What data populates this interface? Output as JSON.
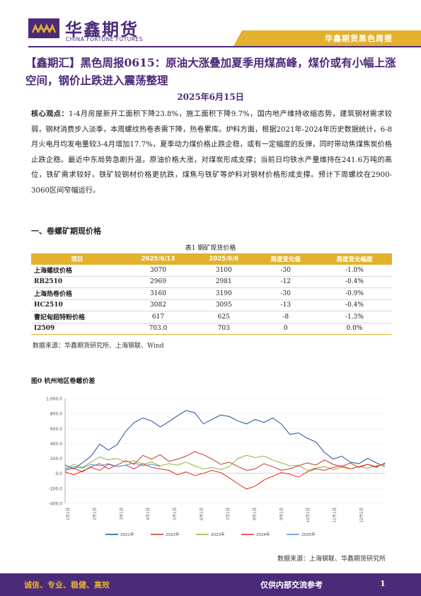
{
  "header": {
    "brand_cn": "华鑫期货",
    "brand_en": "CHINA FORTUNE FUTURES",
    "report_series": "华鑫期货黑色周报"
  },
  "title": "【鑫期汇】黑色周报0615：原油大涨叠加夏季用煤高峰，煤价或有小幅上涨空间，钢价止跌进入震荡整理",
  "date": "2025年6月15日",
  "core_view": {
    "label": "核心观点：",
    "text": "1-4月房屋新开工面积下降23.8%，施工面积下降9.7%，国内地产维持收缩态势，建筑钢材需求较弱，钢材消费步入淡季，本周螺纹热卷表需下降，热卷累库。炉料方面，根据2021年-2024年历史数据统计，6-8月火电月均发电量较3-4月增加17.7%，夏季动力煤价格止跌企稳，或有一定幅度的反弹，同时带动焦煤焦炭价格止跌企稳。最近中东局势急剧升温，原油价格大涨，对煤炭形成支撑；当前日均铁水产量维持在241.6万吨的高位，铁矿需求较好，铁矿较钢材价格更抗跌，煤焦与铁矿等炉料对钢材价格形成支撑。预计下周螺纹在2900-3060区间窄幅运行。"
  },
  "section1": {
    "heading": "一、卷螺矿期现价格",
    "table_caption": "表1 钢矿现货价格",
    "columns": [
      "项目",
      "2025/6/13",
      "2025/6/6",
      "周度变化值",
      "周度变化幅度"
    ],
    "rows": [
      [
        "上海螺纹价格",
        "3070",
        "3100",
        "-30",
        "-1.0%"
      ],
      [
        "RB2510",
        "2969",
        "2981",
        "-12",
        "-0.4%"
      ],
      [
        "上海热卷价格",
        "3160",
        "3190",
        "-30",
        "-0.9%"
      ],
      [
        "HC2510",
        "3082",
        "3095",
        "-13",
        "-0.4%"
      ],
      [
        "曹妃甸超特粉价格",
        "617",
        "625",
        "-8",
        "-1.3%"
      ],
      [
        "I2509",
        "703.0",
        "703",
        "0",
        "0.0%"
      ]
    ],
    "source": "数据来源：华鑫期货研究所、上海钢联、Wind"
  },
  "figure": {
    "caption": "图0 杭州地区卷螺价差",
    "source": "数据来源：上海钢联、华鑫期货研究所"
  },
  "chart_data": {
    "type": "line",
    "x_tick_labels": [
      "1月1日",
      "2月1日",
      "3月1日",
      "4月1日",
      "5月1日",
      "6月1日",
      "7月1日",
      "8月1日",
      "9月1日",
      "10月1日",
      "11月1日",
      "12月1日"
    ],
    "y_tick_labels": [
      "1,000.0",
      "800.0",
      "600.0",
      "400.0",
      "200.0",
      "0.0",
      "-200.0",
      "-400.0"
    ],
    "ylim": [
      -400,
      1000
    ],
    "legend_position": "bottom",
    "series": [
      {
        "name": "2021年",
        "color": "#1f4e9c",
        "values": [
          110,
          60,
          140,
          230,
          390,
          310,
          380,
          560,
          680,
          740,
          700,
          620,
          690,
          770,
          840,
          810,
          660,
          720,
          780,
          760,
          700,
          660,
          720,
          680,
          740,
          660,
          520,
          540,
          470,
          420,
          280,
          190,
          230,
          150,
          130,
          200,
          140,
          90
        ]
      },
      {
        "name": "2022年",
        "color": "#c0392b",
        "values": [
          40,
          70,
          20,
          90,
          130,
          60,
          110,
          170,
          120,
          240,
          190,
          250,
          160,
          190,
          230,
          290,
          250,
          190,
          120,
          150,
          90,
          40,
          60,
          130,
          90,
          40,
          60,
          100,
          140,
          110,
          180,
          120,
          90,
          140,
          80,
          120,
          90,
          130
        ]
      },
      {
        "name": "2023年",
        "color": "#8fb33a",
        "values": [
          60,
          120,
          80,
          150,
          220,
          180,
          200,
          150,
          170,
          120,
          150,
          100,
          130,
          110,
          150,
          100,
          60,
          80,
          50,
          90,
          200,
          240,
          210,
          230,
          180,
          140,
          100,
          110,
          40,
          70,
          90,
          50,
          80,
          60,
          90,
          70,
          100,
          120
        ]
      },
      {
        "name": "2024年",
        "color": "#e8281c",
        "values": [
          20,
          -20,
          30,
          80,
          40,
          120,
          90,
          110,
          60,
          130,
          80,
          60,
          40,
          -20,
          20,
          -30,
          0,
          40,
          10,
          -60,
          -140,
          -210,
          -170,
          -90,
          -40,
          10,
          -10,
          -50,
          20,
          60,
          40,
          80,
          100,
          60,
          90,
          120,
          80,
          140
        ]
      },
      {
        "name": "2025年",
        "color": "#4a90d9",
        "values": [
          60,
          90,
          70,
          120,
          100,
          130,
          90,
          110,
          140,
          100,
          120,
          95
        ]
      }
    ]
  },
  "footer": {
    "slogan": "诚信、专业、稳健、高效",
    "notice": "仅供内部交流参考",
    "page": "1"
  }
}
